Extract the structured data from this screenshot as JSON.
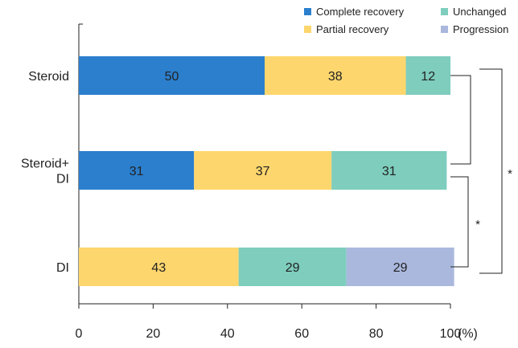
{
  "chart_data": {
    "type": "bar",
    "orientation": "horizontal",
    "stacked": true,
    "categories": [
      "Steroid",
      "Steroid+\nDI",
      "DI"
    ],
    "series": [
      {
        "name": "Complete recovery",
        "color": "#2b7fcd",
        "values": [
          50,
          31,
          0
        ]
      },
      {
        "name": "Partial recovery",
        "color": "#fdd66d",
        "values": [
          38,
          37,
          43
        ]
      },
      {
        "name": "Unchanged",
        "color": "#7ecdbd",
        "values": [
          12,
          31,
          29
        ]
      },
      {
        "name": "Progression",
        "color": "#aab8de",
        "values": [
          0,
          0,
          29
        ]
      }
    ],
    "data_labels": [
      [
        "50",
        "38",
        "12",
        ""
      ],
      [
        "31",
        "37",
        "31",
        ""
      ],
      [
        "",
        "43",
        "29",
        "29"
      ]
    ],
    "xlim": [
      0,
      100
    ],
    "xticks": [
      0,
      20,
      40,
      60,
      80,
      100
    ],
    "x_unit_label": "(%)",
    "legend_position": "top-right",
    "grid": false,
    "significance": [
      {
        "between": [
          "Steroid",
          "Steroid+\nDI"
        ],
        "label": ""
      },
      {
        "between": [
          "Steroid+\nDI",
          "DI"
        ],
        "label": "*"
      },
      {
        "between": [
          "Steroid",
          "DI"
        ],
        "label": "*"
      }
    ]
  }
}
